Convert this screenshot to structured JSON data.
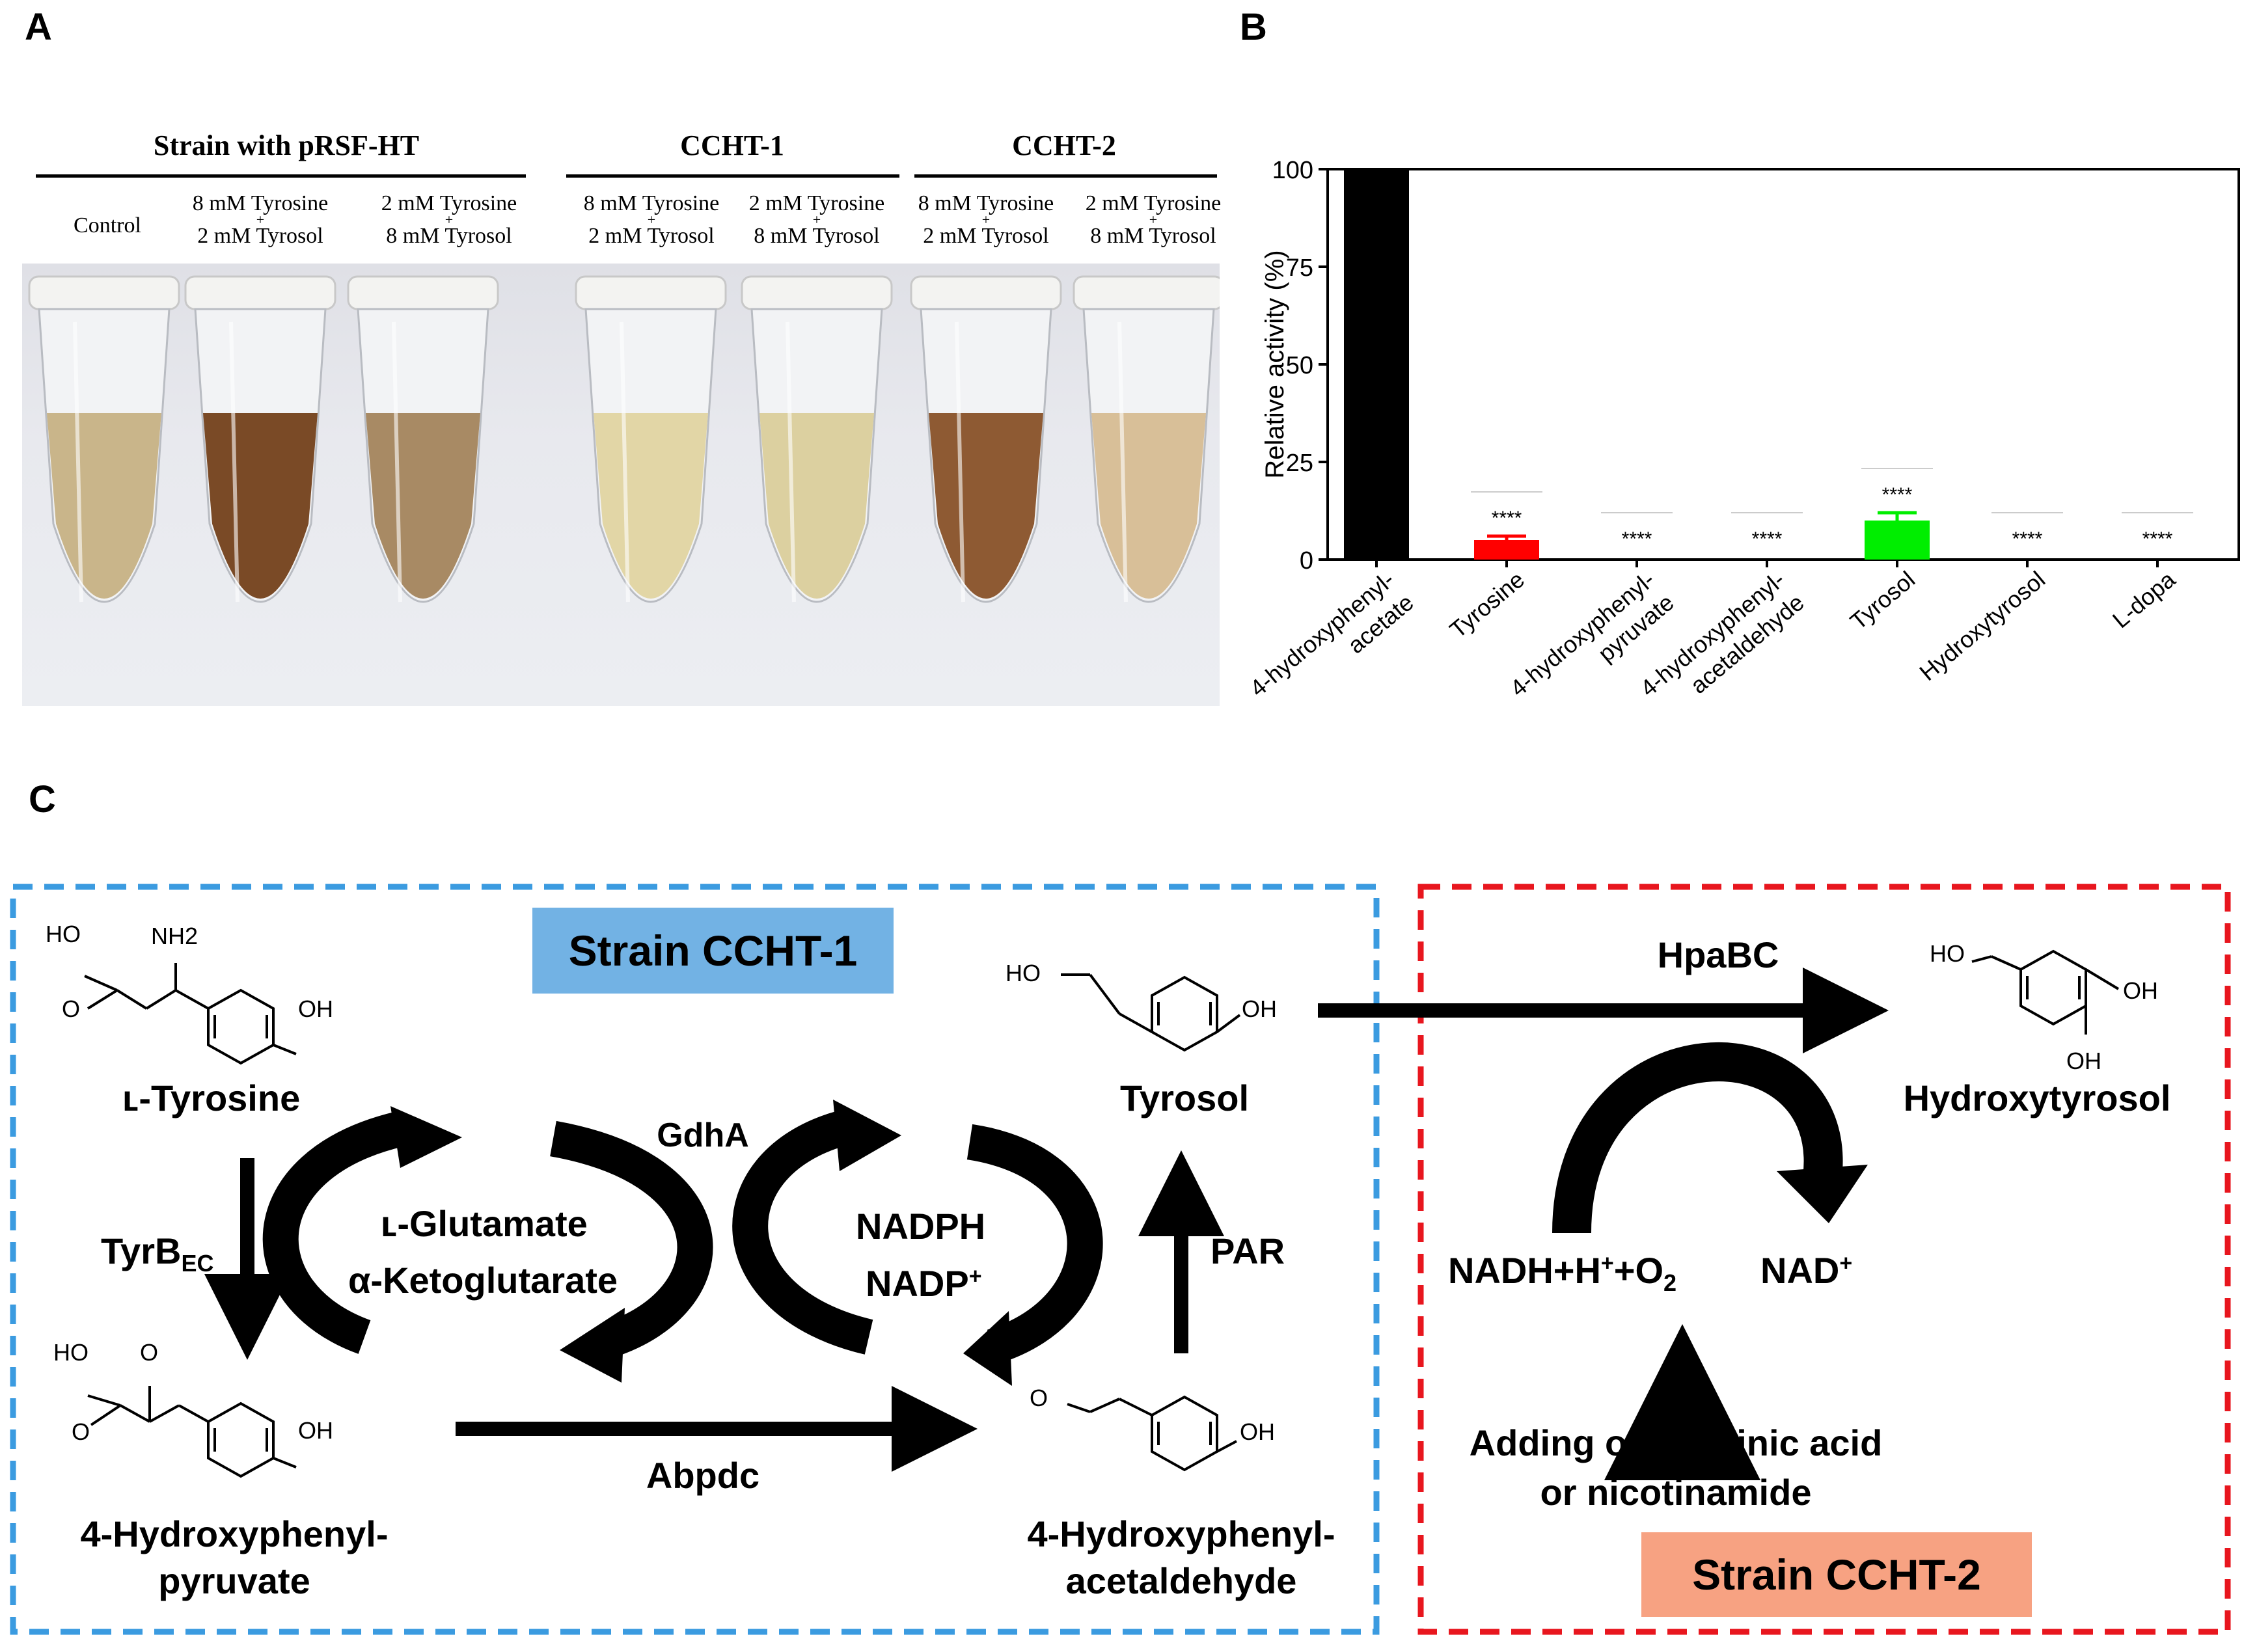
{
  "panels": {
    "a": "A",
    "b": "B",
    "c": "C"
  },
  "panel_a": {
    "groups": [
      {
        "title": "Strain with pRSF-HT"
      },
      {
        "title": "CCHT-1"
      },
      {
        "title": "CCHT-2"
      }
    ],
    "conditions": [
      {
        "line1": "Control",
        "plus": "",
        "line2": ""
      },
      {
        "line1": "8 mM Tyrosine",
        "plus": "+",
        "line2": "2 mM Tyrosol"
      },
      {
        "line1": "2 mM Tyrosine",
        "plus": "+",
        "line2": "8 mM Tyrosol"
      },
      {
        "line1": "8 mM Tyrosine",
        "plus": "+",
        "line2": "2 mM Tyrosol"
      },
      {
        "line1": "2 mM Tyrosine",
        "plus": "+",
        "line2": "8 mM Tyrosol"
      },
      {
        "line1": "8 mM Tyrosine",
        "plus": "+",
        "line2": "2 mM Tyrosol"
      },
      {
        "line1": "2 mM Tyrosine",
        "plus": "+",
        "line2": "8 mM Tyrosol"
      }
    ],
    "tube_colors": [
      "#c9b58a",
      "#7a4a26",
      "#a88a64",
      "#e2d6a6",
      "#dcd0a0",
      "#8e5a33",
      "#d8bf98"
    ]
  },
  "chart_data": {
    "type": "bar",
    "title": "",
    "ylabel": "Relative activity (%)",
    "xlabel": "",
    "ylim": [
      0,
      100
    ],
    "yticks": [
      0,
      25,
      50,
      75,
      100
    ],
    "categories": [
      "4-hydroxyphenyl-acetate",
      "Tyrosine",
      "4-hydroxyphenyl-pyruvate",
      "4-hydroxyphenyl-acetaldehyde",
      "Tyrosol",
      "Hydroxytyrosol",
      "L-dopa"
    ],
    "category_lines": [
      [
        "4-hydroxyphenyl-",
        "acetate"
      ],
      [
        "Tyrosine"
      ],
      [
        "4-hydroxyphenyl-",
        "pyruvate"
      ],
      [
        "4-hydroxyphenyl-",
        "acetaldehyde"
      ],
      [
        "Tyrosol"
      ],
      [
        "Hydroxytyrosol"
      ],
      [
        "L-dopa"
      ]
    ],
    "values": [
      100,
      5,
      0,
      0,
      10,
      0,
      0
    ],
    "errors": [
      0,
      1,
      0,
      0,
      2,
      0,
      0
    ],
    "colors": [
      "#000000",
      "#ff0000",
      "#000000",
      "#000000",
      "#00ee00",
      "#000000",
      "#000000"
    ],
    "significance": [
      "",
      "****",
      "****",
      "****",
      "****",
      "****",
      "****"
    ]
  },
  "panel_c": {
    "strain1_label": "Strain CCHT-1",
    "strain2_label": "Strain CCHT-2",
    "strain1_color": "#72b2e4",
    "strain2_color": "#f7a282",
    "box1_border": "#3b9be0",
    "box2_border": "#e8161e",
    "compounds": {
      "tyrosine": "ʟ-Tyrosine",
      "hpp_1": "4-Hydroxyphenyl-",
      "hpp_2": "pyruvate",
      "hpaa_1": "4-Hydroxyphenyl-",
      "hpaa_2": "acetaldehyde",
      "tyrosol": "Tyrosol",
      "hydroxytyrosol": "Hydroxytyrosol"
    },
    "enzymes": {
      "tyrb_main": "TyrB",
      "tyrb_sub": "EC",
      "gdha": "GdhA",
      "abpdc": "Abpdc",
      "par": "PAR",
      "hpabc": "HpaBC"
    },
    "cofactors": {
      "glutamate": "ʟ-Glutamate",
      "ketoglutarate": "α-Ketoglutarate",
      "nadph": "NADPH",
      "nadp": "NADP",
      "nadp_sup": "+",
      "nadh_a": "NADH+H",
      "nadh_sup": "+",
      "nadh_b": "+O",
      "nadh_sub": "2",
      "nad": "NAD",
      "nad_sup": "+"
    },
    "note_1": "Adding of nicotinic acid",
    "note_2": "or nicotinamide",
    "struct_labels": {
      "ho": "HO",
      "nh2": "NH2",
      "o": "O",
      "oh": "OH"
    }
  }
}
